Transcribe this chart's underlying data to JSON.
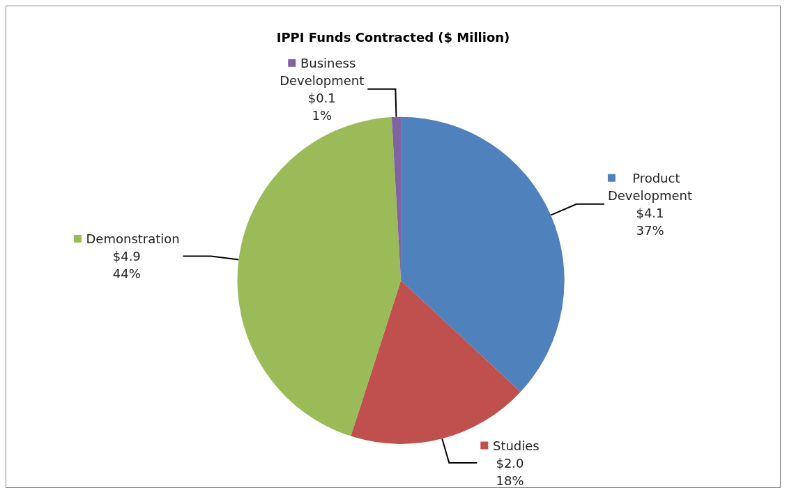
{
  "chart_data": {
    "type": "pie",
    "title": "IPPI Funds Contracted ($ Million)",
    "categories": [
      "Product Development",
      "Studies",
      "Demonstration",
      "Business Development"
    ],
    "values": [
      4.1,
      2.0,
      4.9,
      0.1
    ],
    "legend": "top left",
    "colors": [
      "#4f81bd",
      "#c0504d",
      "#9bbb59",
      "#8064a2"
    ],
    "value_labels": [
      "$4.1\n37%",
      "$2.0\n18%",
      "$4.9\n44%",
      "$0.1\n1%"
    ]
  }
}
